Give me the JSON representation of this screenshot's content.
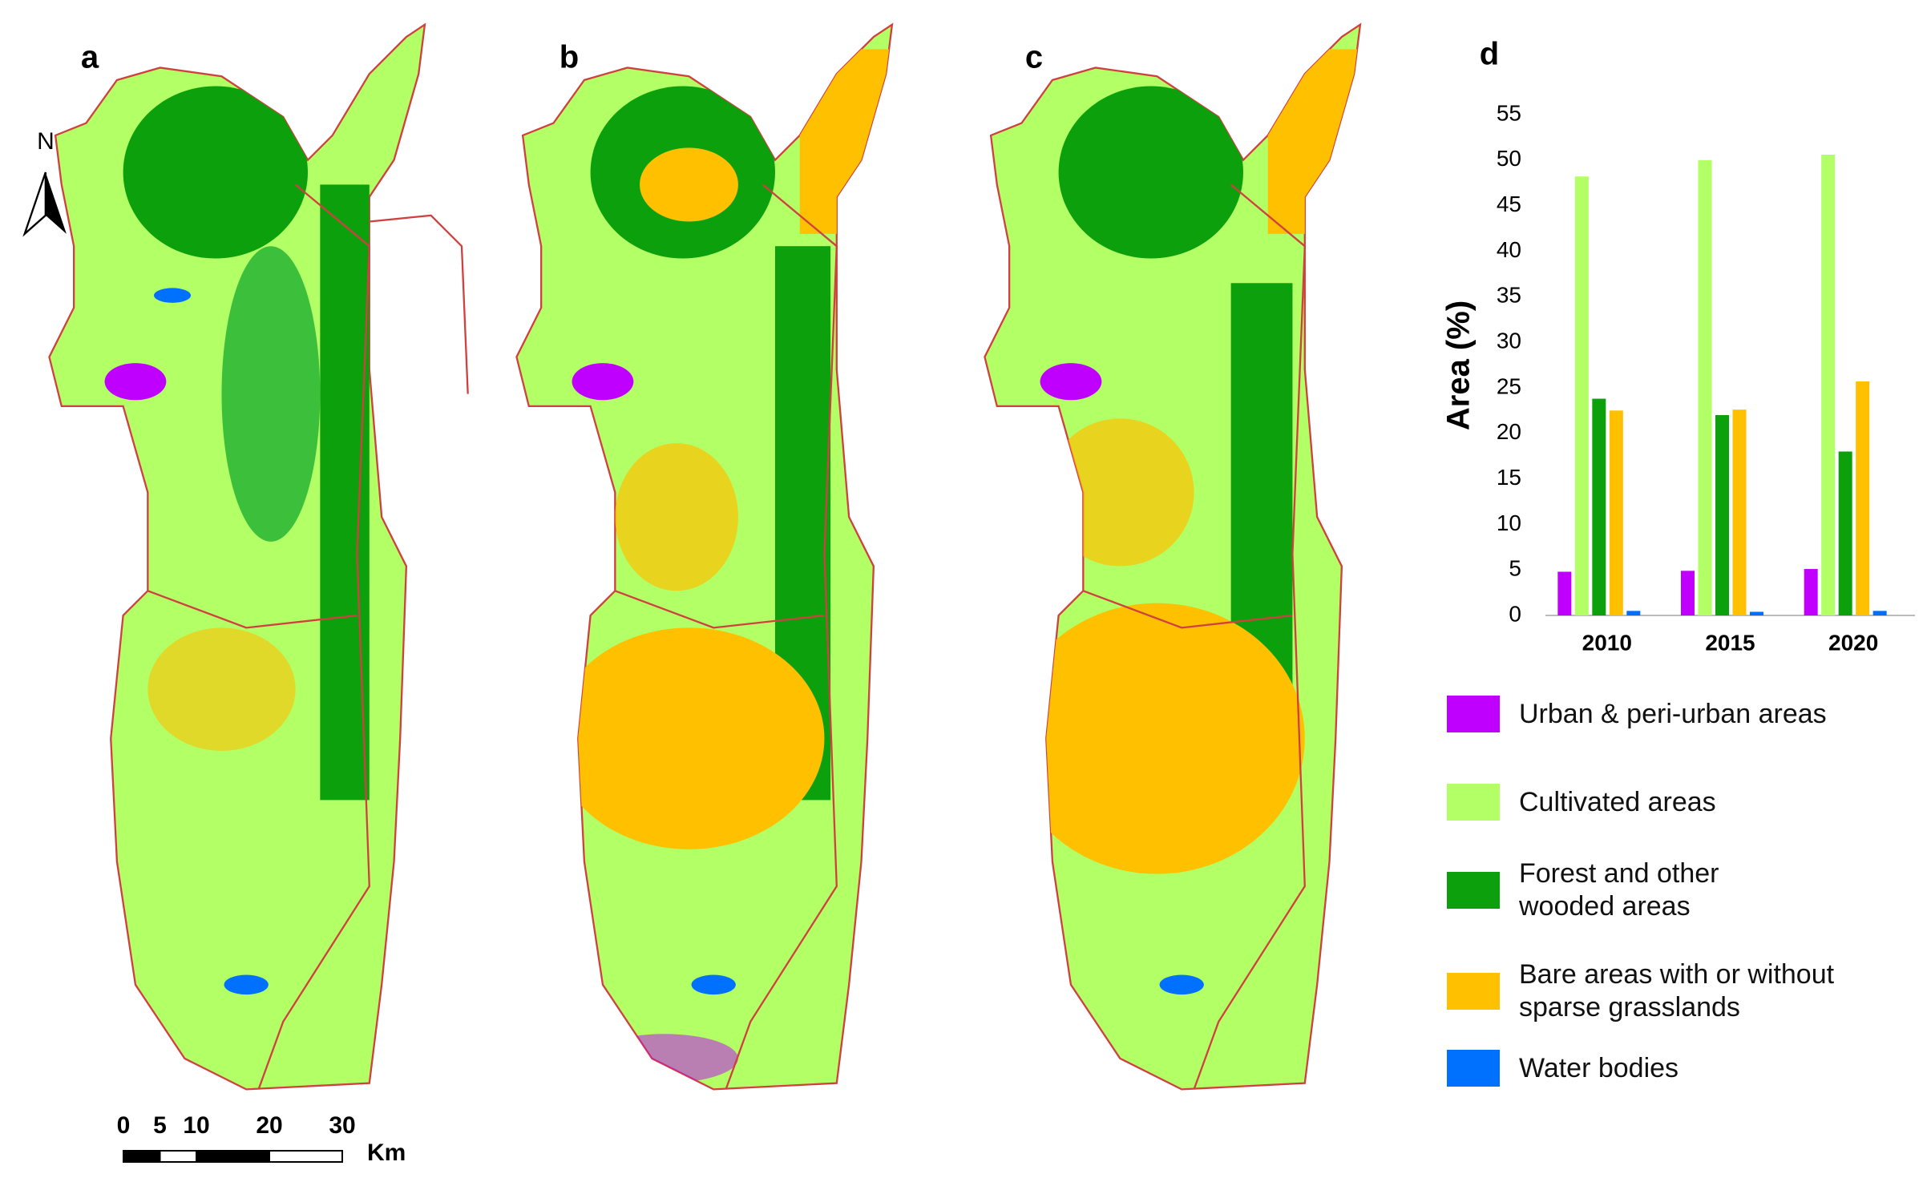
{
  "maps": {
    "panels": [
      "a",
      "b",
      "c"
    ],
    "north": "N",
    "scale_bar": {
      "ticks": [
        0,
        5,
        10,
        20,
        30
      ],
      "unit": "Km"
    }
  },
  "chart_data": {
    "type": "bar",
    "panel": "d",
    "y_label": "Area (%)",
    "categories": [
      "2010",
      "2015",
      "2020"
    ],
    "series": [
      {
        "name": "Urban & peri-urban areas",
        "color": "#c000ff",
        "values": [
          4.8,
          4.9,
          5.1
        ]
      },
      {
        "name": "Cultivated areas",
        "color": "#b2ff66",
        "values": [
          48.2,
          50,
          50.6
        ]
      },
      {
        "name": "Forest and other wooded areas",
        "color": "#0da00d",
        "values": [
          23.8,
          22,
          18
        ]
      },
      {
        "name": "Bare areas with or without sparse grasslands",
        "color": "#ffc000",
        "values": [
          22.5,
          22.6,
          25.7
        ]
      },
      {
        "name": "Water bodies",
        "color": "#0070ff",
        "values": [
          0.5,
          0.4,
          0.5
        ]
      }
    ],
    "ylim": [
      0,
      55
    ],
    "yticks": [
      0,
      5,
      10,
      15,
      20,
      25,
      30,
      35,
      40,
      45,
      50,
      55
    ]
  }
}
